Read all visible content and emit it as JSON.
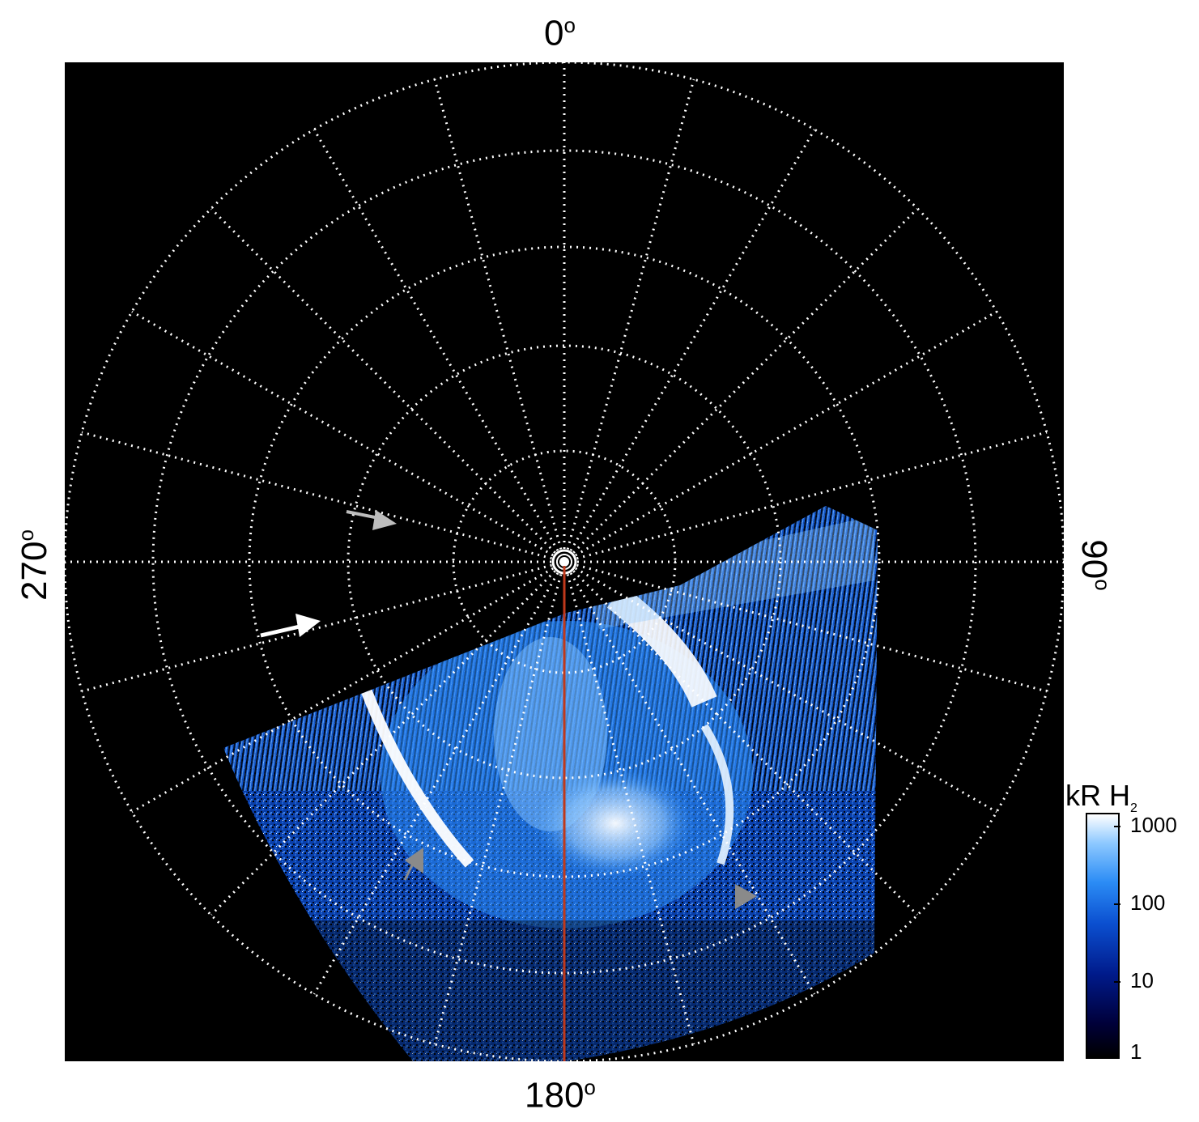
{
  "longitude_labels": {
    "top": "0",
    "bottom": "180",
    "left": "270",
    "right": "90",
    "degree_symbol": "o"
  },
  "colorbar": {
    "title_main": "kR H",
    "title_sub": "2",
    "ticks": [
      "1000",
      "100",
      "10",
      "1"
    ],
    "colors": [
      "#000000",
      "#001a8a",
      "#2b8cf5",
      "#ffffff"
    ]
  },
  "colors": {
    "background": "#000000",
    "grid": "#ffffff",
    "meridian_line": "#c0391b",
    "arrow_white": "#ffffff",
    "arrow_gray": "#bdbdbd",
    "arrow_dark_gray": "#8a8a8a"
  }
}
